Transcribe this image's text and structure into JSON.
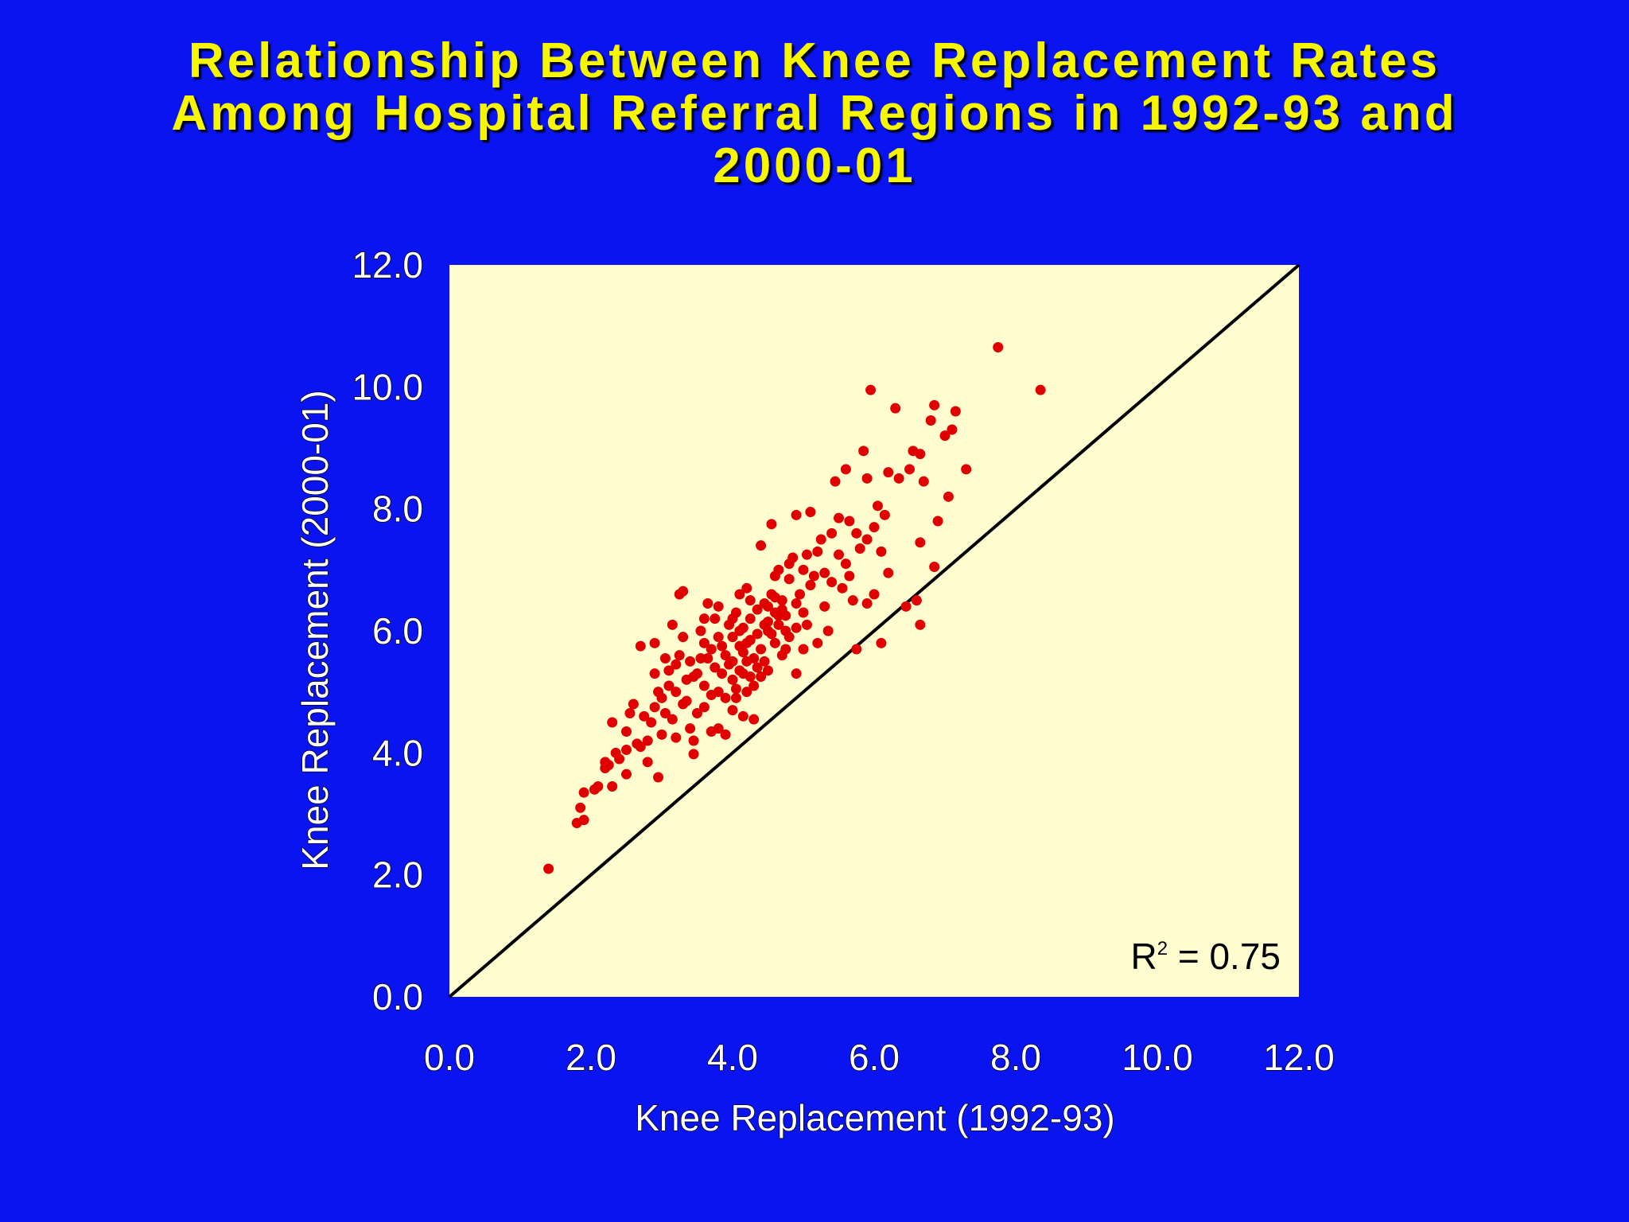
{
  "chart_data": {
    "type": "scatter",
    "title_lines": [
      "Relationship Between Knee Replacement Rates",
      "Among Hospital Referral Regions in 1992-93 and",
      "2000-01"
    ],
    "xlabel": "Knee Replacement (1992-93)",
    "ylabel": "Knee Replacement (2000-01)",
    "xlim": [
      0,
      12
    ],
    "ylim": [
      0,
      12
    ],
    "x_ticks": [
      "0.0",
      "2.0",
      "4.0",
      "6.0",
      "8.0",
      "10.0",
      "12.0"
    ],
    "y_ticks": [
      "0.0",
      "2.0",
      "4.0",
      "6.0",
      "8.0",
      "10.0",
      "12.0"
    ],
    "reference_line": {
      "type": "identity",
      "from": [
        0,
        0
      ],
      "to": [
        12,
        12
      ]
    },
    "annotation": {
      "prefix": "R",
      "superscript": "2",
      "text": " = 0.75"
    },
    "colors": {
      "background": "#0a14f0",
      "plot_area": "#fffdd0",
      "points": "#e00000",
      "title": "#f6f600",
      "axis_text": "#ffffff",
      "reference_line": "#000000"
    },
    "points": [
      [
        1.4,
        2.1
      ],
      [
        1.8,
        2.85
      ],
      [
        1.85,
        3.1
      ],
      [
        1.9,
        2.9
      ],
      [
        1.9,
        3.35
      ],
      [
        2.05,
        3.4
      ],
      [
        2.1,
        3.45
      ],
      [
        2.2,
        3.75
      ],
      [
        2.2,
        3.85
      ],
      [
        2.25,
        3.8
      ],
      [
        2.3,
        3.45
      ],
      [
        2.35,
        4.0
      ],
      [
        2.3,
        4.5
      ],
      [
        2.4,
        3.9
      ],
      [
        2.5,
        3.65
      ],
      [
        2.5,
        4.05
      ],
      [
        2.5,
        4.35
      ],
      [
        2.55,
        4.65
      ],
      [
        2.6,
        4.8
      ],
      [
        2.65,
        4.15
      ],
      [
        2.7,
        4.1
      ],
      [
        2.7,
        5.75
      ],
      [
        2.8,
        3.85
      ],
      [
        2.8,
        4.2
      ],
      [
        2.85,
        4.5
      ],
      [
        2.9,
        4.75
      ],
      [
        2.9,
        5.3
      ],
      [
        2.9,
        5.8
      ],
      [
        2.95,
        3.6
      ],
      [
        3.0,
        4.3
      ],
      [
        3.0,
        4.9
      ],
      [
        3.05,
        4.65
      ],
      [
        3.1,
        5.1
      ],
      [
        3.1,
        5.35
      ],
      [
        3.15,
        6.1
      ],
      [
        3.2,
        4.25
      ],
      [
        3.2,
        5.0
      ],
      [
        3.25,
        5.6
      ],
      [
        3.25,
        6.6
      ],
      [
        3.3,
        6.65
      ],
      [
        3.3,
        4.8
      ],
      [
        3.35,
        5.2
      ],
      [
        3.4,
        4.4
      ],
      [
        3.4,
        5.5
      ],
      [
        3.45,
        3.98
      ],
      [
        3.45,
        4.2
      ],
      [
        3.5,
        4.65
      ],
      [
        3.5,
        5.3
      ],
      [
        3.55,
        5.55
      ],
      [
        3.55,
        6.0
      ],
      [
        3.6,
        6.2
      ],
      [
        3.6,
        5.1
      ],
      [
        3.65,
        6.45
      ],
      [
        3.7,
        4.95
      ],
      [
        3.7,
        5.7
      ],
      [
        3.75,
        5.4
      ],
      [
        3.75,
        6.2
      ],
      [
        3.8,
        4.4
      ],
      [
        3.8,
        5.0
      ],
      [
        3.8,
        5.9
      ],
      [
        3.85,
        5.3
      ],
      [
        3.9,
        4.3
      ],
      [
        3.9,
        5.6
      ],
      [
        3.95,
        6.1
      ],
      [
        4.0,
        4.7
      ],
      [
        4.0,
        5.2
      ],
      [
        4.0,
        5.5
      ],
      [
        4.0,
        5.9
      ],
      [
        4.05,
        6.3
      ],
      [
        4.05,
        4.9
      ],
      [
        4.1,
        5.35
      ],
      [
        4.1,
        5.75
      ],
      [
        4.1,
        6.6
      ],
      [
        4.15,
        4.6
      ],
      [
        4.15,
        5.65
      ],
      [
        4.15,
        6.05
      ],
      [
        4.2,
        6.7
      ],
      [
        4.2,
        5.0
      ],
      [
        4.2,
        5.5
      ],
      [
        4.25,
        5.85
      ],
      [
        4.25,
        6.2
      ],
      [
        4.3,
        4.55
      ],
      [
        4.3,
        5.1
      ],
      [
        4.3,
        5.55
      ],
      [
        4.35,
        5.95
      ],
      [
        4.35,
        6.35
      ],
      [
        4.4,
        5.25
      ],
      [
        4.4,
        5.7
      ],
      [
        4.4,
        7.4
      ],
      [
        4.45,
        6.1
      ],
      [
        4.5,
        5.35
      ],
      [
        4.5,
        6.0
      ],
      [
        4.5,
        6.4
      ],
      [
        4.55,
        6.6
      ],
      [
        4.55,
        7.75
      ],
      [
        4.6,
        5.8
      ],
      [
        4.6,
        6.3
      ],
      [
        4.65,
        6.1
      ],
      [
        4.65,
        7.0
      ],
      [
        4.7,
        6.5
      ],
      [
        4.7,
        5.6
      ],
      [
        4.75,
        6.25
      ],
      [
        4.8,
        5.9
      ],
      [
        4.8,
        6.85
      ],
      [
        4.85,
        7.2
      ],
      [
        4.9,
        5.3
      ],
      [
        4.9,
        6.05
      ],
      [
        4.9,
        7.9
      ],
      [
        4.95,
        6.6
      ],
      [
        5.0,
        5.7
      ],
      [
        5.0,
        6.3
      ],
      [
        5.0,
        7.0
      ],
      [
        5.05,
        7.25
      ],
      [
        5.1,
        6.75
      ],
      [
        5.1,
        7.95
      ],
      [
        5.15,
        6.9
      ],
      [
        5.2,
        5.8
      ],
      [
        5.2,
        7.3
      ],
      [
        5.25,
        7.5
      ],
      [
        5.3,
        6.4
      ],
      [
        5.35,
        6.0
      ],
      [
        5.4,
        6.8
      ],
      [
        5.4,
        7.6
      ],
      [
        5.45,
        8.45
      ],
      [
        5.5,
        7.85
      ],
      [
        5.55,
        6.7
      ],
      [
        5.6,
        7.1
      ],
      [
        5.6,
        8.65
      ],
      [
        5.65,
        7.8
      ],
      [
        5.7,
        6.5
      ],
      [
        5.75,
        7.6
      ],
      [
        5.75,
        5.7
      ],
      [
        5.8,
        7.35
      ],
      [
        5.85,
        8.95
      ],
      [
        5.9,
        7.5
      ],
      [
        5.9,
        8.5
      ],
      [
        5.9,
        6.45
      ],
      [
        5.95,
        9.95
      ],
      [
        6.0,
        7.7
      ],
      [
        6.0,
        6.6
      ],
      [
        6.05,
        8.05
      ],
      [
        6.1,
        7.3
      ],
      [
        6.1,
        5.8
      ],
      [
        6.15,
        7.9
      ],
      [
        6.2,
        6.95
      ],
      [
        6.2,
        8.6
      ],
      [
        6.3,
        9.65
      ],
      [
        6.35,
        8.5
      ],
      [
        6.45,
        6.4
      ],
      [
        6.5,
        8.65
      ],
      [
        6.55,
        8.95
      ],
      [
        6.6,
        6.5
      ],
      [
        6.65,
        7.45
      ],
      [
        6.65,
        8.9
      ],
      [
        6.65,
        6.1
      ],
      [
        6.7,
        8.45
      ],
      [
        6.8,
        9.45
      ],
      [
        6.85,
        9.7
      ],
      [
        6.85,
        7.05
      ],
      [
        6.9,
        7.8
      ],
      [
        7.0,
        9.2
      ],
      [
        7.05,
        8.2
      ],
      [
        7.1,
        9.3
      ],
      [
        7.15,
        9.6
      ],
      [
        7.3,
        8.65
      ],
      [
        7.75,
        10.65
      ],
      [
        8.35,
        9.95
      ],
      [
        3.3,
        5.9
      ],
      [
        3.6,
        5.8
      ],
      [
        3.8,
        6.4
      ],
      [
        4.0,
        6.2
      ],
      [
        4.1,
        6.0
      ],
      [
        4.2,
        5.8
      ],
      [
        4.25,
        6.5
      ],
      [
        4.45,
        6.45
      ],
      [
        4.5,
        6.15
      ],
      [
        4.55,
        5.95
      ],
      [
        4.6,
        6.55
      ],
      [
        4.65,
        6.25
      ],
      [
        4.7,
        6.35
      ],
      [
        4.75,
        6.0
      ],
      [
        4.35,
        5.4
      ],
      [
        4.15,
        5.3
      ],
      [
        3.95,
        5.45
      ],
      [
        3.85,
        5.75
      ],
      [
        3.65,
        5.55
      ],
      [
        3.45,
        5.25
      ],
      [
        3.2,
        5.45
      ],
      [
        3.05,
        5.55
      ],
      [
        2.95,
        5.0
      ],
      [
        2.75,
        4.6
      ],
      [
        3.15,
        4.55
      ],
      [
        3.35,
        4.85
      ],
      [
        3.6,
        4.75
      ],
      [
        3.7,
        4.35
      ],
      [
        3.9,
        4.9
      ],
      [
        4.05,
        5.05
      ],
      [
        4.25,
        5.25
      ],
      [
        4.45,
        5.5
      ],
      [
        4.75,
        5.7
      ],
      [
        4.9,
        6.45
      ],
      [
        5.05,
        6.1
      ],
      [
        5.3,
        6.95
      ],
      [
        5.5,
        7.25
      ],
      [
        5.65,
        6.9
      ],
      [
        4.8,
        7.1
      ],
      [
        4.6,
        6.9
      ]
    ]
  }
}
